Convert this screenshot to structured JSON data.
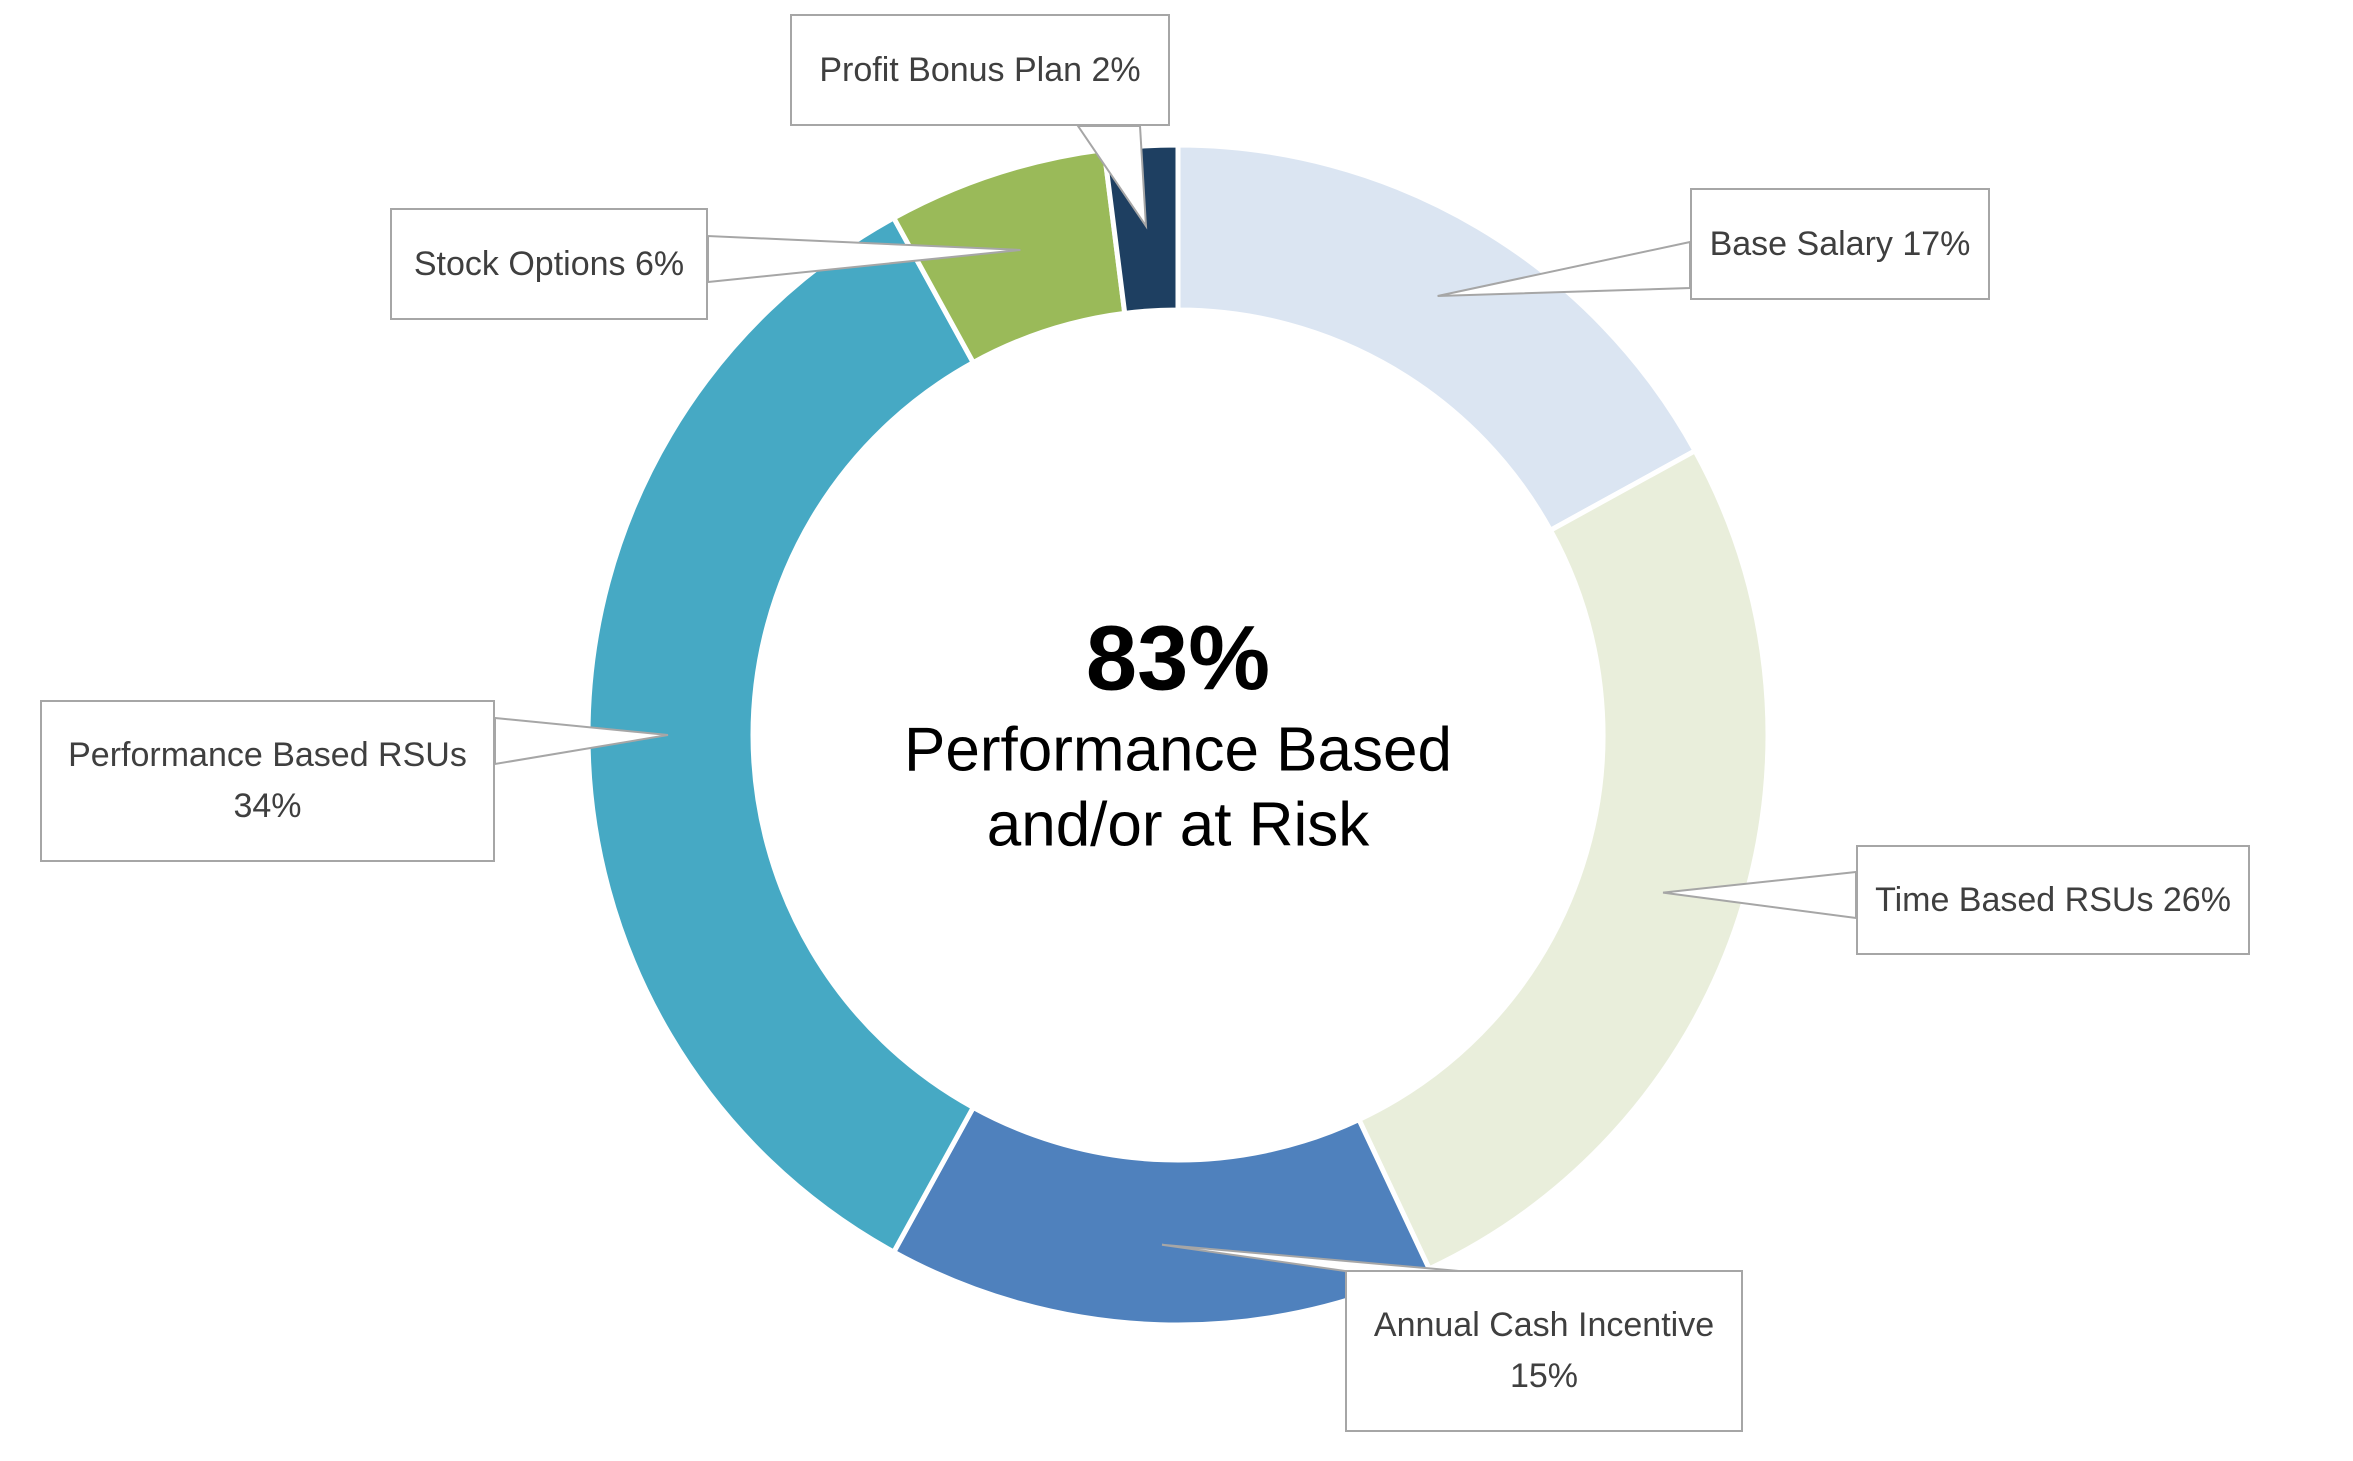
{
  "chart_data": {
    "type": "pie",
    "subtype": "donut",
    "title": "",
    "legend_position": "callouts",
    "total": 100,
    "center": {
      "percent_label": "83%",
      "subtitle_lines": [
        "Performance Based",
        "and/or at Risk"
      ]
    },
    "slices": [
      {
        "label": "Base Salary",
        "value": 17,
        "color": "#dbe5f2",
        "callout_lines": [
          "Base Salary 17%"
        ]
      },
      {
        "label": "Time Based RSUs",
        "value": 26,
        "color": "#e9eedb",
        "callout_lines": [
          "Time Based RSUs 26%"
        ]
      },
      {
        "label": "Annual Cash Incentive",
        "value": 15,
        "color": "#4f81bd",
        "callout_lines": [
          "Annual Cash Incentive",
          "15%"
        ]
      },
      {
        "label": "Performance Based RSUs",
        "value": 34,
        "color": "#46a9c4",
        "callout_lines": [
          "Performance Based RSUs",
          "34%"
        ]
      },
      {
        "label": "Stock Options",
        "value": 6,
        "color": "#9aba59",
        "callout_lines": [
          "Stock Options 6%"
        ]
      },
      {
        "label": "Profit Bonus Plan",
        "value": 2,
        "color": "#1e3f61",
        "callout_lines": [
          "Profit Bonus Plan 2%"
        ]
      }
    ],
    "style": {
      "callout_border_color": "#a6a6a6",
      "callout_text_color": "#3f3f3f",
      "gap_color": "#ffffff"
    }
  }
}
